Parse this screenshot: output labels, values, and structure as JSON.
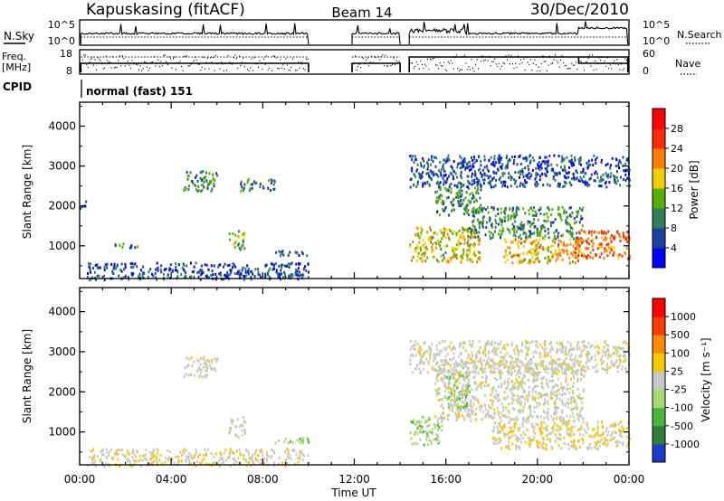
{
  "header": {
    "station": "Kapuskasing (fitACF)",
    "beam": "Beam 14",
    "date": "30/Dec/2010"
  },
  "top_panels": {
    "nsky_label": "N.Sky",
    "nsky_ticks": [
      "10^5",
      "10^0"
    ],
    "nsearch_label": "N.Search",
    "nsearch_ticks": [
      "10^5",
      "10^0"
    ],
    "freq_label_line1": "Freq.",
    "freq_label_line2": "[MHz]",
    "freq_ticks": [
      "18",
      "8"
    ],
    "nave_label": "Nave",
    "nave_ticks": [
      "60",
      "0"
    ],
    "cpid_label": "CPID",
    "cpid_text": "normal (fast) 151"
  },
  "axes": {
    "x_ticks": [
      "00:00",
      "04:00",
      "08:00",
      "12:00",
      "16:00",
      "20:00",
      "00:00"
    ],
    "x_label": "Time UT",
    "y_label": "Slant Range [km]",
    "y_ticks": [
      "1000",
      "2000",
      "3000",
      "4000"
    ]
  },
  "colorbars": {
    "power": {
      "label": "Power [dB]",
      "ticks": [
        "28",
        "24",
        "20",
        "16",
        "12",
        "8",
        "4"
      ],
      "colors": [
        "#0000ff",
        "#1a3f9e",
        "#2e7f5a",
        "#56b000",
        "#f0d000",
        "#ff8000",
        "#ff2a00",
        "#ff0000"
      ]
    },
    "velocity": {
      "label": "Velocity [m s⁻¹]",
      "ticks": [
        "1000",
        "500",
        "100",
        "25",
        "-25",
        "-100",
        "-500",
        "-1000"
      ],
      "colors": [
        "#1a3cc8",
        "#2f7f3a",
        "#4ab53a",
        "#a8d870",
        "#c8c8c8",
        "#f5c800",
        "#ff8c00",
        "#ff3c00",
        "#ff0000"
      ]
    }
  },
  "chart_data": [
    {
      "type": "heatmap",
      "title": "Power",
      "xlabel": "Time UT",
      "ylabel": "Slant Range [km]",
      "xlim_hours": [
        0,
        24
      ],
      "ylim_km": [
        180,
        4600
      ],
      "colorbar_label": "Power [dB]",
      "color_range": [
        0,
        30
      ],
      "gaps_hours": [
        [
          10.0,
          11.9
        ],
        [
          14.0,
          14.4
        ]
      ],
      "echo_regions": [
        {
          "t": [
            0.0,
            0.3
          ],
          "range_km": [
            1950,
            2200
          ],
          "level": 8
        },
        {
          "t": [
            0.3,
            10.0
          ],
          "range_km": [
            180,
            600
          ],
          "level": 6
        },
        {
          "t": [
            1.5,
            2.5
          ],
          "range_km": [
            950,
            1100
          ],
          "level": 10
        },
        {
          "t": [
            4.5,
            6.0
          ],
          "range_km": [
            2400,
            2900
          ],
          "level": 10
        },
        {
          "t": [
            6.5,
            7.2
          ],
          "range_km": [
            900,
            1400
          ],
          "level": 14
        },
        {
          "t": [
            7.0,
            8.5
          ],
          "range_km": [
            2400,
            2700
          ],
          "level": 8
        },
        {
          "t": [
            8.5,
            10.0
          ],
          "range_km": [
            750,
            900
          ],
          "level": 8
        },
        {
          "t": [
            14.4,
            17.5
          ],
          "range_km": [
            600,
            1500
          ],
          "level": 16
        },
        {
          "t": [
            15.5,
            17.5
          ],
          "range_km": [
            1800,
            2600
          ],
          "level": 10
        },
        {
          "t": [
            17.0,
            22.0
          ],
          "range_km": [
            1200,
            2000
          ],
          "level": 10
        },
        {
          "t": [
            18.5,
            22.0
          ],
          "range_km": [
            600,
            1200
          ],
          "level": 18
        },
        {
          "t": [
            21.5,
            24.0
          ],
          "range_km": [
            700,
            1400
          ],
          "level": 22
        },
        {
          "t": [
            14.4,
            24.0
          ],
          "range_km": [
            2500,
            3300
          ],
          "level": 6
        }
      ]
    },
    {
      "type": "heatmap",
      "title": "Velocity",
      "xlabel": "Time UT",
      "ylabel": "Slant Range [km]",
      "xlim_hours": [
        0,
        24
      ],
      "ylim_km": [
        180,
        4600
      ],
      "colorbar_label": "Velocity [m s⁻¹]",
      "color_range": [
        -1000,
        1000
      ],
      "gaps_hours": [
        [
          10.0,
          11.9
        ],
        [
          14.0,
          14.4
        ]
      ],
      "echo_regions": [
        {
          "t": [
            0.3,
            10.0
          ],
          "range_km": [
            180,
            600
          ],
          "level": 80
        },
        {
          "t": [
            4.5,
            6.0
          ],
          "range_km": [
            2400,
            2900
          ],
          "level": 0
        },
        {
          "t": [
            6.5,
            7.2
          ],
          "range_km": [
            900,
            1400
          ],
          "level": -30
        },
        {
          "t": [
            8.5,
            10.0
          ],
          "range_km": [
            750,
            900
          ],
          "level": -300
        },
        {
          "t": [
            14.4,
            15.8
          ],
          "range_km": [
            700,
            1400
          ],
          "level": -250
        },
        {
          "t": [
            16.0,
            17.0
          ],
          "range_km": [
            1600,
            2500
          ],
          "level": -400
        },
        {
          "t": [
            15.5,
            22.0
          ],
          "range_km": [
            1300,
            2800
          ],
          "level": 0
        },
        {
          "t": [
            18.0,
            24.0
          ],
          "range_km": [
            600,
            1300
          ],
          "level": 120
        },
        {
          "t": [
            14.4,
            24.0
          ],
          "range_km": [
            2500,
            3300
          ],
          "level": 0
        }
      ]
    }
  ]
}
